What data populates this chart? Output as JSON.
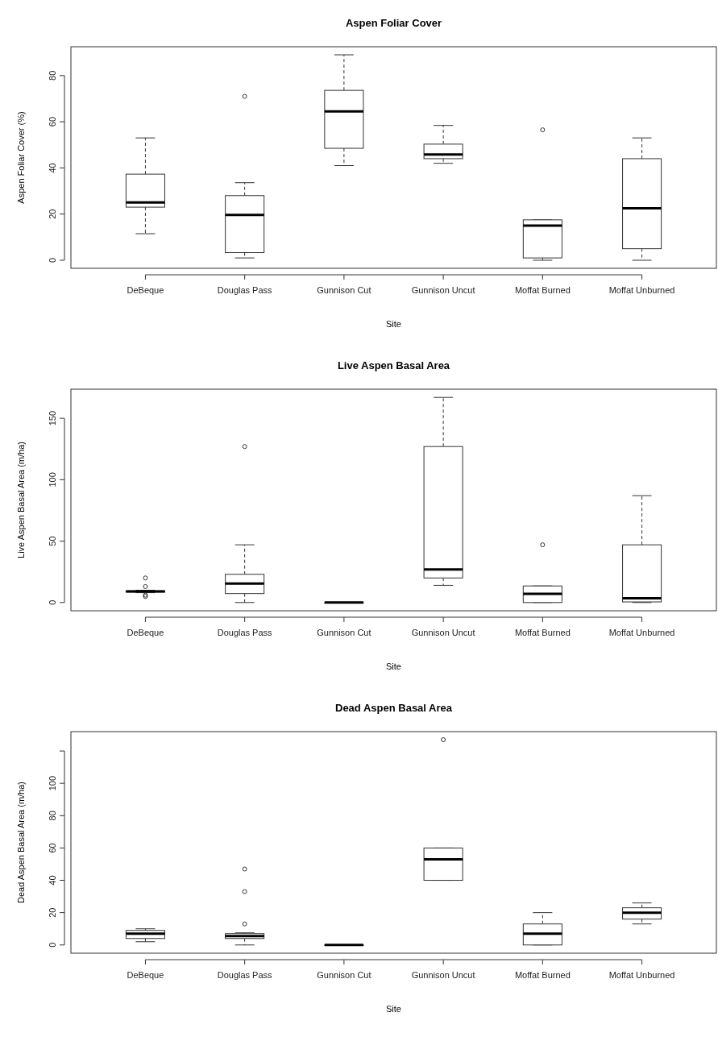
{
  "chart_data": [
    {
      "type": "box",
      "title": "Aspen Foliar Cover",
      "xlabel": "Site",
      "ylabel": "Aspen Foliar Cover (%)",
      "categories": [
        "DeBeque",
        "Douglas Pass",
        "Gunnison Cut",
        "Gunnison Uncut",
        "Moffat Burned",
        "Moffat Unburned"
      ],
      "ylim": [
        -3.5,
        92.5
      ],
      "yticks": [
        0,
        20,
        40,
        60,
        80
      ],
      "grid": false,
      "boxes": [
        {
          "low": 11.5,
          "q1": 23,
          "median": 25,
          "q3": 37.3,
          "high": 53
        },
        {
          "low": 1,
          "q1": 3.3,
          "median": 19.6,
          "q3": 28,
          "high": 33.6,
          "outliers": [
            71
          ]
        },
        {
          "low": 41,
          "q1": 48.5,
          "median": 64.5,
          "q3": 73.6,
          "high": 89
        },
        {
          "low": 42,
          "q1": 44,
          "median": 45.8,
          "q3": 50.3,
          "high": 58.4
        },
        {
          "low": 0,
          "q1": 1,
          "median": 15,
          "q3": 17.5,
          "high": 17.5,
          "outliers": [
            56.5
          ]
        },
        {
          "low": 0,
          "q1": 5,
          "median": 22.5,
          "q3": 44,
          "high": 53
        }
      ]
    },
    {
      "type": "box",
      "title": "Live Aspen Basal Area",
      "xlabel": "Site",
      "ylabel": "Live Aspen Basal Area (m/ha)",
      "categories": [
        "DeBeque",
        "Douglas Pass",
        "Gunnison Cut",
        "Gunnison Uncut",
        "Moffat Burned",
        "Moffat Unburned"
      ],
      "ylim": [
        -6.7,
        173.7
      ],
      "yticks": [
        0,
        50,
        100,
        150
      ],
      "grid": false,
      "boxes": [
        {
          "low": 8,
          "q1": 8.5,
          "median": 9,
          "q3": 9.5,
          "high": 10,
          "outliers": [
            20,
            13,
            6,
            5
          ]
        },
        {
          "low": 0,
          "q1": 7.3,
          "median": 15.4,
          "q3": 23,
          "high": 47,
          "outliers": [
            127
          ]
        },
        {
          "low": 0,
          "q1": 0,
          "median": 0,
          "q3": 0,
          "high": 0
        },
        {
          "low": 14,
          "q1": 20,
          "median": 27,
          "q3": 127,
          "high": 167
        },
        {
          "low": 0,
          "q1": 0,
          "median": 7,
          "q3": 13.5,
          "high": 13.5,
          "outliers": [
            47
          ]
        },
        {
          "low": 0,
          "q1": 0.5,
          "median": 3.5,
          "q3": 47,
          "high": 87
        }
      ]
    },
    {
      "type": "box",
      "title": "Dead Aspen Basal Area",
      "xlabel": "Site",
      "ylabel": "Dead Aspen Basal Area (m/ha)",
      "categories": [
        "DeBeque",
        "Douglas Pass",
        "Gunnison Cut",
        "Gunnison Uncut",
        "Moffat Burned",
        "Moffat Unburned"
      ],
      "ylim": [
        -5.1,
        132
      ],
      "yticks": [
        0,
        20,
        40,
        60,
        80,
        100,
        {
          "value": 120,
          "label": null
        }
      ],
      "grid": false,
      "boxes": [
        {
          "low": 2,
          "q1": 4,
          "median": 7,
          "q3": 9,
          "high": 10
        },
        {
          "low": 0,
          "q1": 4,
          "median": 5.5,
          "q3": 7,
          "high": 7.5,
          "outliers": [
            47,
            33,
            13
          ]
        },
        {
          "low": 0,
          "q1": 0,
          "median": 0,
          "q3": 0,
          "high": 0
        },
        {
          "low": 40,
          "q1": 40,
          "median": 53,
          "q3": 60,
          "high": 60,
          "outliers": [
            127
          ]
        },
        {
          "low": 0,
          "q1": 0,
          "median": 7,
          "q3": 13,
          "high": 20
        },
        {
          "low": 13,
          "q1": 16,
          "median": 20,
          "q3": 23,
          "high": 26
        }
      ]
    }
  ]
}
